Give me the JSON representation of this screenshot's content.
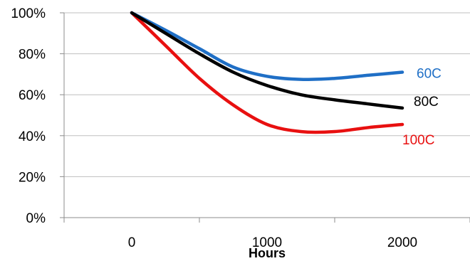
{
  "chart_data": {
    "type": "line",
    "xlabel": "Hours",
    "ylabel": "",
    "xlim": [
      -500,
      2500
    ],
    "ylim": [
      0,
      1
    ],
    "x_ticks": [
      0,
      1000,
      2000
    ],
    "x_tick_labels": [
      "0",
      "1000",
      "2000"
    ],
    "y_ticks": [
      0,
      0.2,
      0.4,
      0.6,
      0.8,
      1.0
    ],
    "y_tick_labels": [
      "0%",
      "20%",
      "40%",
      "60%",
      "80%",
      "100%"
    ],
    "grid": "horizontal",
    "legend": "none",
    "series": [
      {
        "name": "60C",
        "color": "#1F6FC6",
        "x": [
          0,
          250,
          500,
          750,
          1000,
          1250,
          1500,
          1750,
          2000
        ],
        "y": [
          1.0,
          0.915,
          0.825,
          0.735,
          0.69,
          0.675,
          0.68,
          0.695,
          0.71
        ]
      },
      {
        "name": "80C",
        "color": "#000000",
        "x": [
          0,
          250,
          500,
          750,
          1000,
          1250,
          1500,
          1750,
          2000
        ],
        "y": [
          1.0,
          0.9,
          0.8,
          0.71,
          0.645,
          0.6,
          0.575,
          0.555,
          0.535
        ]
      },
      {
        "name": "100C",
        "color": "#E81010",
        "x": [
          0,
          250,
          500,
          750,
          1000,
          1250,
          1500,
          1750,
          2000
        ],
        "y": [
          1.0,
          0.84,
          0.68,
          0.55,
          0.455,
          0.42,
          0.42,
          0.44,
          0.455
        ]
      }
    ]
  }
}
